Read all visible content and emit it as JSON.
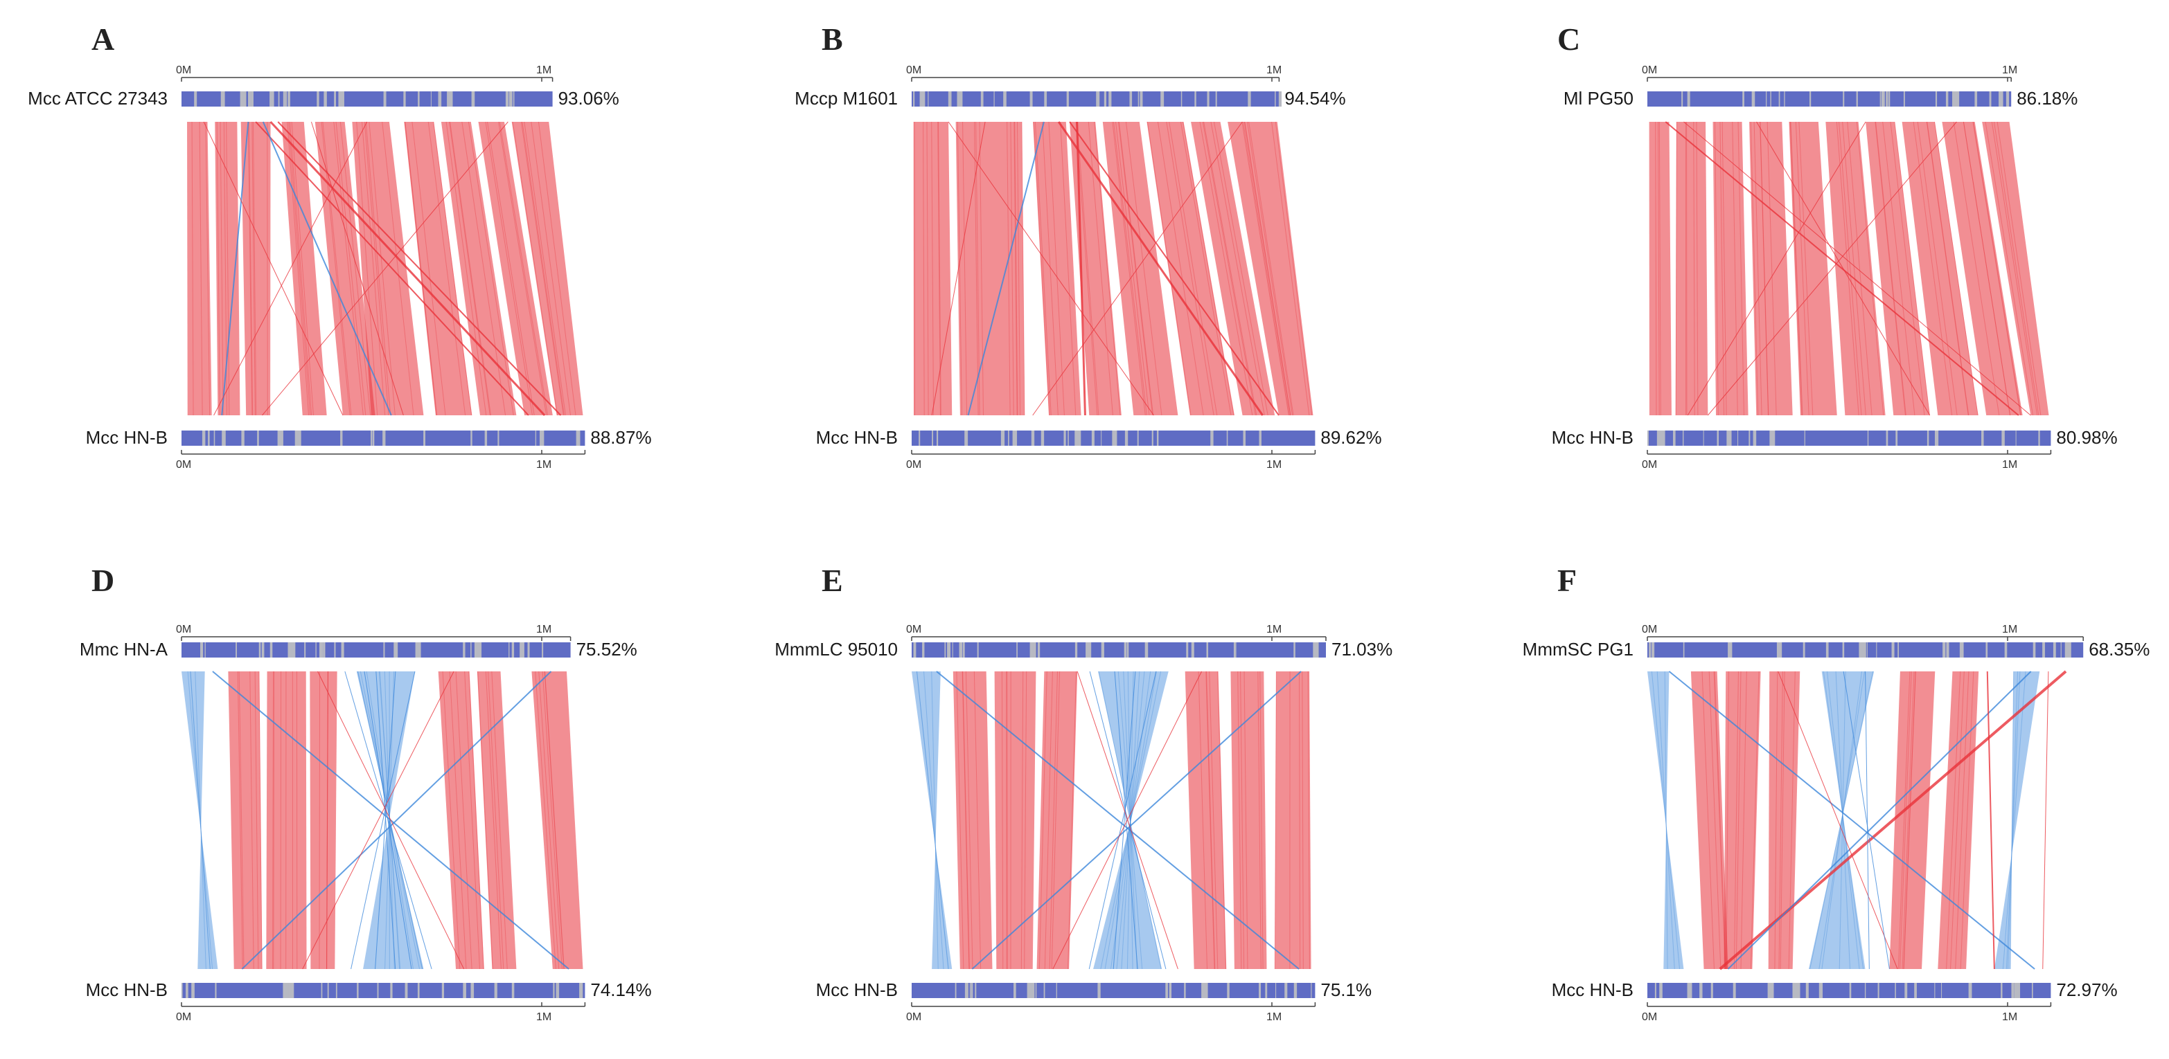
{
  "figure": {
    "palette": {
      "forward": "#e8323a",
      "reverse": "#3c87db",
      "bar": "#5f6cc4",
      "gap": "#b7b9c2",
      "axis": "#444444"
    },
    "panels": [
      {
        "letter": "A",
        "top": {
          "name": "Mcc  ATCC  27343",
          "percent": "93.06%",
          "length_mb": 1.03,
          "tick0": "0M",
          "tick1": "1M"
        },
        "bottom": {
          "name": "Mcc  HN-B",
          "percent": "88.87%",
          "length_mb": 1.12,
          "tick0": "0M",
          "tick1": "1M"
        },
        "blocks": [
          {
            "t0": 0.015,
            "t1": 0.07,
            "b0": 0.015,
            "b1": 0.075,
            "rev": false
          },
          {
            "t0": 0.09,
            "t1": 0.15,
            "b0": 0.09,
            "b1": 0.145,
            "rev": false
          },
          {
            "t0": 0.16,
            "t1": 0.24,
            "b0": 0.16,
            "b1": 0.22,
            "rev": false
          },
          {
            "t0": 0.27,
            "t1": 0.33,
            "b0": 0.3,
            "b1": 0.36,
            "rev": false
          },
          {
            "t0": 0.36,
            "t1": 0.44,
            "b0": 0.4,
            "b1": 0.48,
            "rev": false
          },
          {
            "t0": 0.46,
            "t1": 0.56,
            "b0": 0.47,
            "b1": 0.6,
            "rev": false
          },
          {
            "t0": 0.6,
            "t1": 0.68,
            "b0": 0.63,
            "b1": 0.72,
            "rev": false
          },
          {
            "t0": 0.7,
            "t1": 0.78,
            "b0": 0.74,
            "b1": 0.83,
            "rev": false
          },
          {
            "t0": 0.8,
            "t1": 0.87,
            "b0": 0.85,
            "b1": 0.92,
            "rev": false
          },
          {
            "t0": 0.89,
            "t1": 0.99,
            "b0": 0.93,
            "b1": 0.995,
            "rev": false
          }
        ],
        "lines": [
          {
            "t": 0.2,
            "b": 0.86,
            "rev": false,
            "w": 2
          },
          {
            "t": 0.24,
            "b": 0.9,
            "rev": false,
            "w": 3
          },
          {
            "t": 0.26,
            "b": 0.94,
            "rev": false,
            "w": 2
          },
          {
            "t": 0.22,
            "b": 0.52,
            "rev": true,
            "w": 2
          },
          {
            "t": 0.18,
            "b": 0.1,
            "rev": true,
            "w": 2
          },
          {
            "t": 0.06,
            "b": 0.4,
            "rev": false,
            "w": 1
          },
          {
            "t": 0.88,
            "b": 0.2,
            "rev": false,
            "w": 1
          },
          {
            "t": 0.5,
            "b": 0.08,
            "rev": false,
            "w": 1
          },
          {
            "t": 0.35,
            "b": 0.55,
            "rev": false,
            "w": 1
          }
        ]
      },
      {
        "letter": "B",
        "top": {
          "name": "Mccp  M1601",
          "percent": "94.54%",
          "length_mb": 1.02,
          "tick0": "0M",
          "tick1": "1M"
        },
        "bottom": {
          "name": "Mcc  HN-B",
          "percent": "89.62%",
          "length_mb": 1.12,
          "tick0": "0M",
          "tick1": "1M"
        },
        "blocks": [
          {
            "t0": 0.005,
            "t1": 0.1,
            "b0": 0.005,
            "b1": 0.1,
            "rev": false
          },
          {
            "t0": 0.12,
            "t1": 0.3,
            "b0": 0.12,
            "b1": 0.28,
            "rev": false
          },
          {
            "t0": 0.33,
            "t1": 0.42,
            "b0": 0.34,
            "b1": 0.42,
            "rev": false
          },
          {
            "t0": 0.43,
            "t1": 0.5,
            "b0": 0.44,
            "b1": 0.52,
            "rev": false
          },
          {
            "t0": 0.52,
            "t1": 0.62,
            "b0": 0.55,
            "b1": 0.66,
            "rev": false
          },
          {
            "t0": 0.64,
            "t1": 0.74,
            "b0": 0.69,
            "b1": 0.8,
            "rev": false
          },
          {
            "t0": 0.76,
            "t1": 0.84,
            "b0": 0.82,
            "b1": 0.9,
            "rev": false
          },
          {
            "t0": 0.86,
            "t1": 0.995,
            "b0": 0.91,
            "b1": 0.995,
            "rev": false
          }
        ],
        "lines": [
          {
            "t": 0.4,
            "b": 0.87,
            "rev": false,
            "w": 3
          },
          {
            "t": 0.43,
            "b": 0.91,
            "rev": false,
            "w": 2
          },
          {
            "t": 0.45,
            "b": 0.43,
            "rev": false,
            "w": 3
          },
          {
            "t": 0.36,
            "b": 0.14,
            "rev": true,
            "w": 2
          },
          {
            "t": 0.1,
            "b": 0.6,
            "rev": false,
            "w": 1
          },
          {
            "t": 0.9,
            "b": 0.3,
            "rev": false,
            "w": 1
          },
          {
            "t": 0.2,
            "b": 0.05,
            "rev": false,
            "w": 1
          }
        ]
      },
      {
        "letter": "C",
        "top": {
          "name": "Ml  PG50",
          "percent": "86.18%",
          "length_mb": 1.01,
          "tick0": "0M",
          "tick1": "1M"
        },
        "bottom": {
          "name": "Mcc  HN-B",
          "percent": "80.98%",
          "length_mb": 1.12,
          "tick0": "0M",
          "tick1": "1M"
        },
        "blocks": [
          {
            "t0": 0.005,
            "t1": 0.06,
            "b0": 0.005,
            "b1": 0.06,
            "rev": false
          },
          {
            "t0": 0.08,
            "t1": 0.16,
            "b0": 0.07,
            "b1": 0.15,
            "rev": false
          },
          {
            "t0": 0.18,
            "t1": 0.26,
            "b0": 0.17,
            "b1": 0.25,
            "rev": false
          },
          {
            "t0": 0.28,
            "t1": 0.37,
            "b0": 0.27,
            "b1": 0.36,
            "rev": false
          },
          {
            "t0": 0.39,
            "t1": 0.47,
            "b0": 0.38,
            "b1": 0.47,
            "rev": false
          },
          {
            "t0": 0.49,
            "t1": 0.58,
            "b0": 0.49,
            "b1": 0.59,
            "rev": false
          },
          {
            "t0": 0.6,
            "t1": 0.68,
            "b0": 0.61,
            "b1": 0.7,
            "rev": false
          },
          {
            "t0": 0.7,
            "t1": 0.79,
            "b0": 0.72,
            "b1": 0.82,
            "rev": false
          },
          {
            "t0": 0.81,
            "t1": 0.9,
            "b0": 0.84,
            "b1": 0.93,
            "rev": false
          },
          {
            "t0": 0.92,
            "t1": 0.995,
            "b0": 0.95,
            "b1": 0.995,
            "rev": false
          }
        ],
        "lines": [
          {
            "t": 0.05,
            "b": 0.92,
            "rev": false,
            "w": 2
          },
          {
            "t": 0.1,
            "b": 0.95,
            "rev": false,
            "w": 1
          },
          {
            "t": 0.85,
            "b": 0.15,
            "rev": false,
            "w": 1
          },
          {
            "t": 0.6,
            "b": 0.1,
            "rev": false,
            "w": 1
          },
          {
            "t": 0.3,
            "b": 0.7,
            "rev": false,
            "w": 1
          }
        ]
      },
      {
        "letter": "D",
        "top": {
          "name": "Mmc  HN-A",
          "percent": "75.52%",
          "length_mb": 1.08,
          "tick0": "0M",
          "tick1": "1M"
        },
        "bottom": {
          "name": "Mcc  HN-B",
          "percent": "74.14%",
          "length_mb": 1.12,
          "tick0": "0M",
          "tick1": "1M"
        },
        "blocks": [
          {
            "t0": 0.12,
            "t1": 0.2,
            "b0": 0.13,
            "b1": 0.2,
            "rev": false
          },
          {
            "t0": 0.22,
            "t1": 0.32,
            "b0": 0.21,
            "b1": 0.31,
            "rev": false
          },
          {
            "t0": 0.33,
            "t1": 0.4,
            "b0": 0.32,
            "b1": 0.38,
            "rev": false
          },
          {
            "t0": 0.66,
            "t1": 0.74,
            "b0": 0.68,
            "b1": 0.75,
            "rev": false
          },
          {
            "t0": 0.76,
            "t1": 0.82,
            "b0": 0.77,
            "b1": 0.83,
            "rev": false
          },
          {
            "t0": 0.9,
            "t1": 0.99,
            "b0": 0.92,
            "b1": 0.995,
            "rev": false
          },
          {
            "t0": 0.0,
            "t1": 0.06,
            "b0": 0.04,
            "b1": 0.09,
            "rev": true
          },
          {
            "t0": 0.45,
            "t1": 0.6,
            "b0": 0.45,
            "b1": 0.6,
            "rev": true
          }
        ],
        "lines": [
          {
            "t": 0.08,
            "b": 0.96,
            "rev": true,
            "w": 2
          },
          {
            "t": 0.95,
            "b": 0.15,
            "rev": true,
            "w": 2
          },
          {
            "t": 0.42,
            "b": 0.62,
            "rev": true,
            "w": 1
          },
          {
            "t": 0.47,
            "b": 0.57,
            "rev": true,
            "w": 1
          },
          {
            "t": 0.5,
            "b": 0.53,
            "rev": true,
            "w": 1
          },
          {
            "t": 0.55,
            "b": 0.48,
            "rev": true,
            "w": 1
          },
          {
            "t": 0.6,
            "b": 0.42,
            "rev": true,
            "w": 1
          },
          {
            "t": 0.35,
            "b": 0.7,
            "rev": false,
            "w": 1
          },
          {
            "t": 0.7,
            "b": 0.3,
            "rev": false,
            "w": 1
          }
        ]
      },
      {
        "letter": "E",
        "top": {
          "name": "MmmLC  95010",
          "percent": "71.03%",
          "length_mb": 1.15,
          "tick0": "0M",
          "tick1": "1M"
        },
        "bottom": {
          "name": "Mcc  HN-B",
          "percent": "75.1%",
          "length_mb": 1.12,
          "tick0": "0M",
          "tick1": "1M"
        },
        "blocks": [
          {
            "t0": 0.1,
            "t1": 0.18,
            "b0": 0.12,
            "b1": 0.2,
            "rev": false
          },
          {
            "t0": 0.2,
            "t1": 0.3,
            "b0": 0.21,
            "b1": 0.3,
            "rev": false
          },
          {
            "t0": 0.32,
            "t1": 0.4,
            "b0": 0.31,
            "b1": 0.39,
            "rev": false
          },
          {
            "t0": 0.66,
            "t1": 0.74,
            "b0": 0.7,
            "b1": 0.78,
            "rev": false
          },
          {
            "t0": 0.77,
            "t1": 0.85,
            "b0": 0.8,
            "b1": 0.88,
            "rev": false
          },
          {
            "t0": 0.88,
            "t1": 0.96,
            "b0": 0.9,
            "b1": 0.99,
            "rev": false
          },
          {
            "t0": 0.0,
            "t1": 0.07,
            "b0": 0.05,
            "b1": 0.1,
            "rev": true
          },
          {
            "t0": 0.45,
            "t1": 0.62,
            "b0": 0.45,
            "b1": 0.62,
            "rev": true
          }
        ],
        "lines": [
          {
            "t": 0.06,
            "b": 0.96,
            "rev": true,
            "w": 2
          },
          {
            "t": 0.94,
            "b": 0.15,
            "rev": true,
            "w": 2
          },
          {
            "t": 0.43,
            "b": 0.63,
            "rev": true,
            "w": 1
          },
          {
            "t": 0.49,
            "b": 0.56,
            "rev": true,
            "w": 1
          },
          {
            "t": 0.54,
            "b": 0.5,
            "rev": true,
            "w": 1
          },
          {
            "t": 0.59,
            "b": 0.44,
            "rev": true,
            "w": 1
          },
          {
            "t": 0.4,
            "b": 0.66,
            "rev": false,
            "w": 1
          },
          {
            "t": 0.7,
            "b": 0.35,
            "rev": false,
            "w": 1
          }
        ]
      },
      {
        "letter": "F",
        "top": {
          "name": "MmmSC  PG1",
          "percent": "68.35%",
          "length_mb": 1.21,
          "tick0": "0M",
          "tick1": "1M"
        },
        "bottom": {
          "name": "Mcc  HN-B",
          "percent": "72.97%",
          "length_mb": 1.12,
          "tick0": "0M",
          "tick1": "1M"
        },
        "blocks": [
          {
            "t0": 0.1,
            "t1": 0.16,
            "b0": 0.14,
            "b1": 0.2,
            "rev": false
          },
          {
            "t0": 0.18,
            "t1": 0.26,
            "b0": 0.19,
            "b1": 0.26,
            "rev": false
          },
          {
            "t0": 0.28,
            "t1": 0.35,
            "b0": 0.3,
            "b1": 0.36,
            "rev": false
          },
          {
            "t0": 0.58,
            "t1": 0.66,
            "b0": 0.6,
            "b1": 0.68,
            "rev": false
          },
          {
            "t0": 0.7,
            "t1": 0.76,
            "b0": 0.72,
            "b1": 0.79,
            "rev": false
          },
          {
            "t0": 0.0,
            "t1": 0.05,
            "b0": 0.04,
            "b1": 0.09,
            "rev": true
          },
          {
            "t0": 0.4,
            "t1": 0.52,
            "b0": 0.4,
            "b1": 0.54,
            "rev": true
          },
          {
            "t0": 0.84,
            "t1": 0.9,
            "b0": 0.86,
            "b1": 0.9,
            "rev": true
          }
        ],
        "lines": [
          {
            "t": 0.96,
            "b": 0.18,
            "rev": false,
            "w": 4
          },
          {
            "t": 0.05,
            "b": 0.96,
            "rev": true,
            "w": 2
          },
          {
            "t": 0.88,
            "b": 0.2,
            "rev": true,
            "w": 2
          },
          {
            "t": 0.3,
            "b": 0.62,
            "rev": false,
            "w": 1
          },
          {
            "t": 0.45,
            "b": 0.6,
            "rev": true,
            "w": 1
          },
          {
            "t": 0.5,
            "b": 0.55,
            "rev": true,
            "w": 1
          },
          {
            "t": 0.78,
            "b": 0.86,
            "rev": false,
            "w": 2
          },
          {
            "t": 0.92,
            "b": 0.98,
            "rev": false,
            "w": 1
          }
        ]
      }
    ]
  }
}
